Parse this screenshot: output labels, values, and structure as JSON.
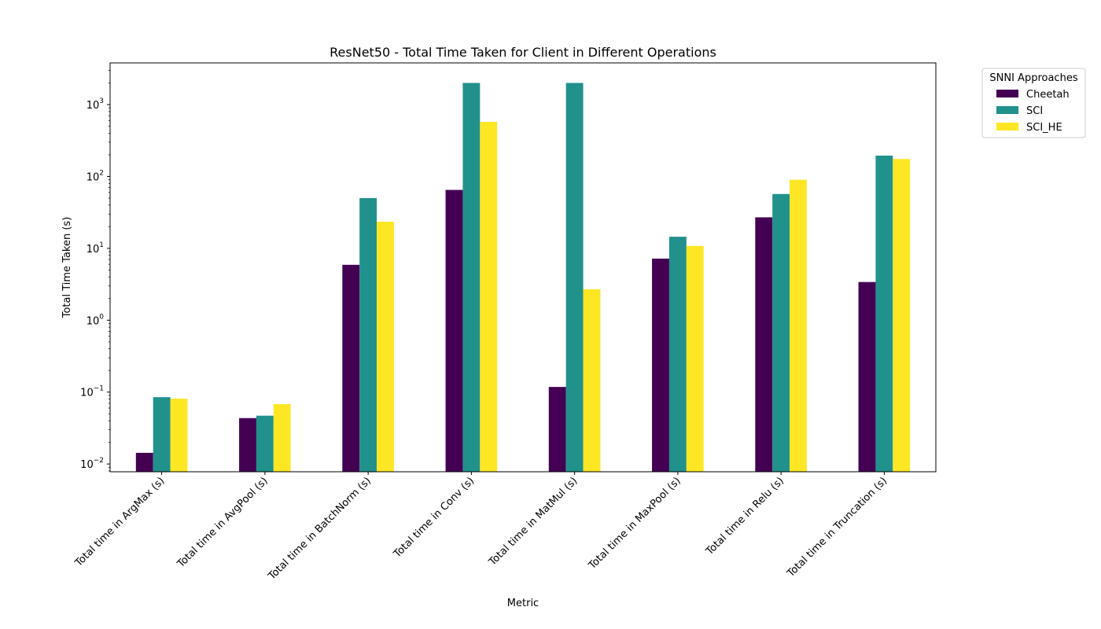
{
  "chart_data": {
    "type": "bar",
    "title": "ResNet50 - Total Time Taken for Client in Different Operations",
    "xlabel": "Metric",
    "ylabel": "Total Time Taken (s)",
    "yscale": "log",
    "ylim": [
      0.0078,
      3800
    ],
    "yticks": [
      {
        "value": 0.01,
        "base": "10",
        "exp": "−2"
      },
      {
        "value": 0.1,
        "base": "10",
        "exp": "−1"
      },
      {
        "value": 1,
        "base": "10",
        "exp": "0"
      },
      {
        "value": 10,
        "base": "10",
        "exp": "1"
      },
      {
        "value": 100,
        "base": "10",
        "exp": "2"
      },
      {
        "value": 1000,
        "base": "10",
        "exp": "3"
      }
    ],
    "grid": false,
    "legend": {
      "title": "SNNI Approaches",
      "placement": "outside-top-right"
    },
    "categories": [
      "Total time in ArgMax (s)",
      "Total time in AvgPool (s)",
      "Total time in BatchNorm (s)",
      "Total time in Conv (s)",
      "Total time in MatMul (s)",
      "Total time in MaxPool (s)",
      "Total time in Relu (s)",
      "Total time in Truncation (s)"
    ],
    "series": [
      {
        "name": "Cheetah",
        "color": "#440154",
        "values": [
          0.0143,
          0.0435,
          5.9,
          65,
          0.118,
          7.2,
          27,
          3.4
        ]
      },
      {
        "name": "SCI",
        "color": "#21918c",
        "values": [
          0.085,
          0.047,
          50,
          2000,
          2000,
          14.5,
          57,
          195
        ]
      },
      {
        "name": "SCI_HE",
        "color": "#fde725",
        "values": [
          0.081,
          0.068,
          23.5,
          575,
          2.7,
          10.8,
          90,
          175
        ]
      }
    ]
  }
}
